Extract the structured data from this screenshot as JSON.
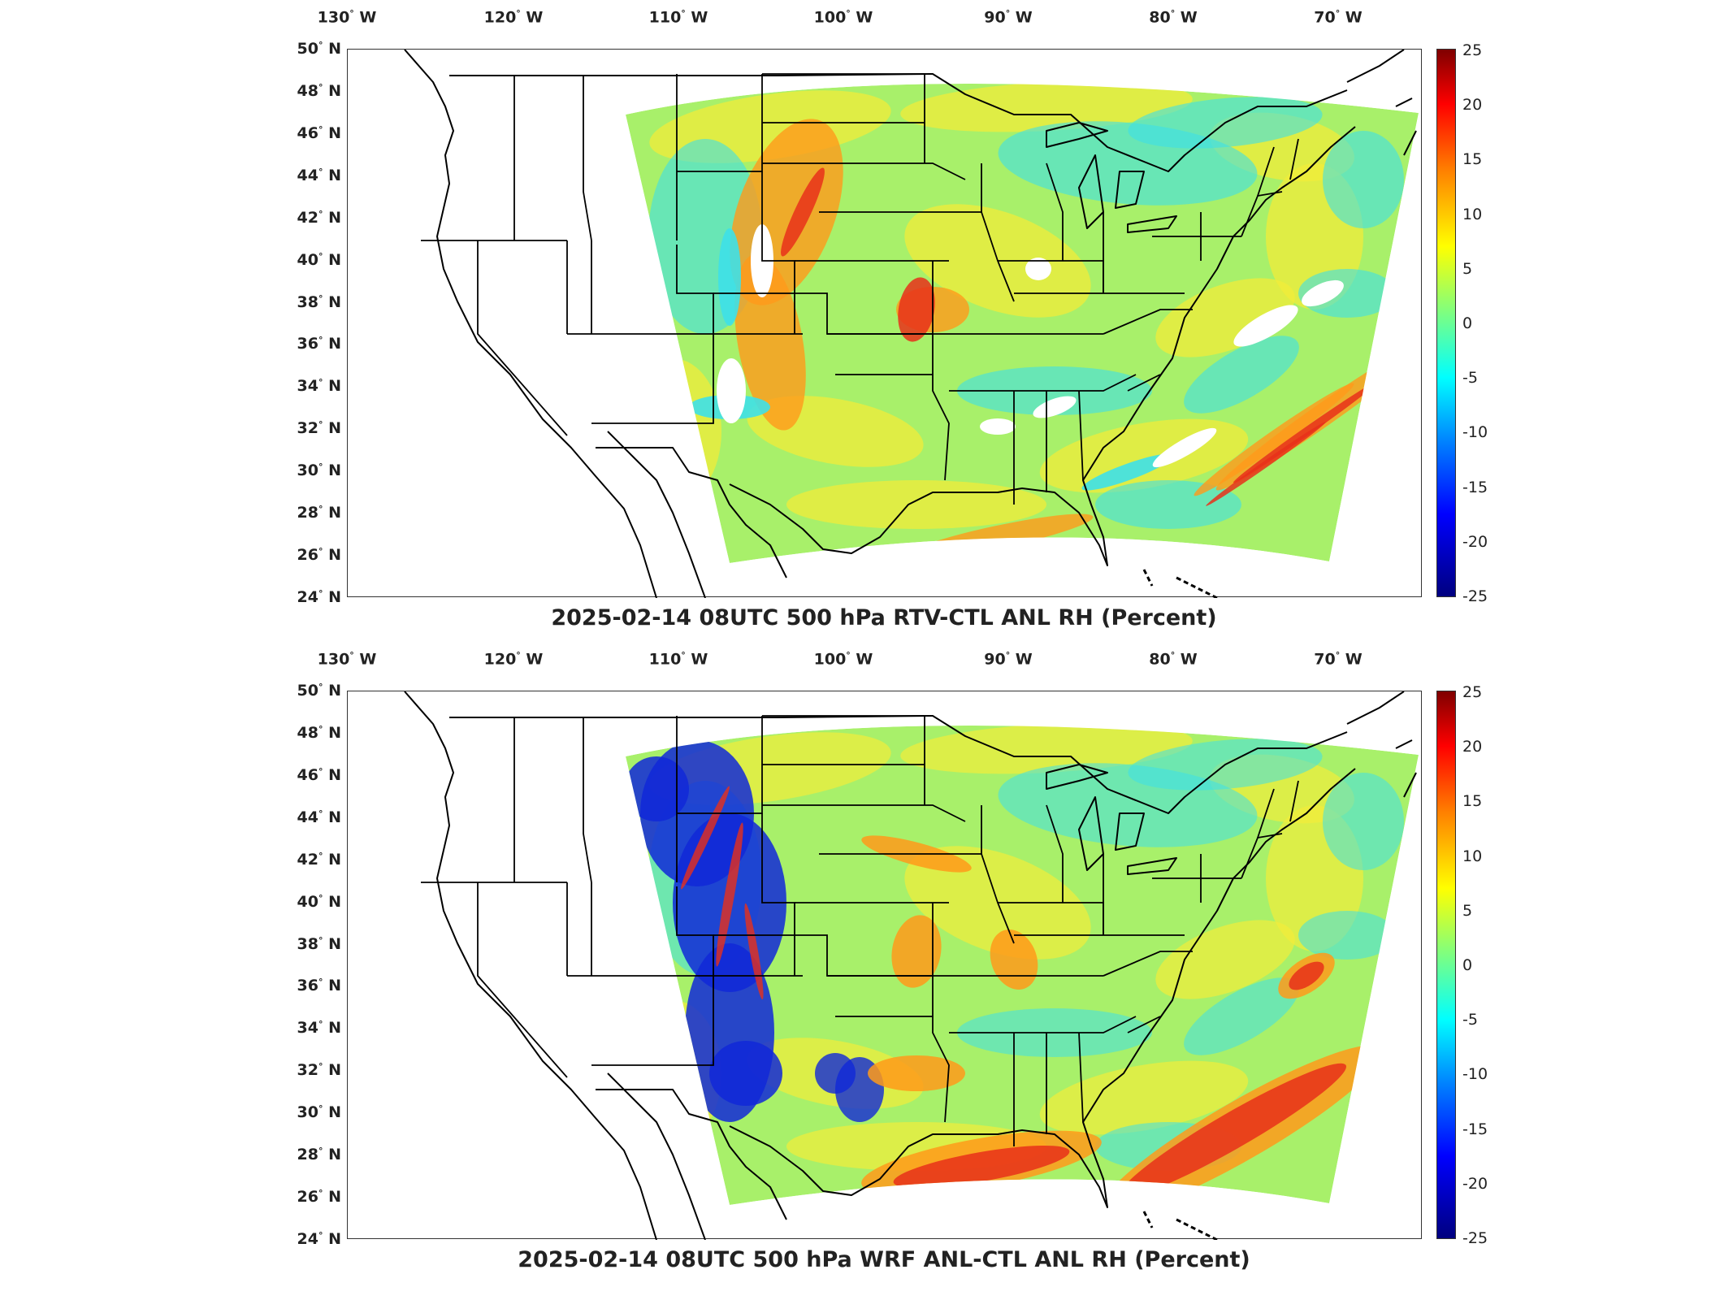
{
  "panels": [
    {
      "title": "2025-02-14 08UTC 500 hPa RTV-CTL ANL RH (Percent)",
      "variant": "rtv"
    },
    {
      "title": "2025-02-14 08UTC 500 hPa WRF ANL-CTL ANL RH (Percent)",
      "variant": "wrf"
    }
  ],
  "lon_labels": [
    "130",
    "120",
    "110",
    "100",
    "90",
    "80",
    "70"
  ],
  "lon_suffix": "W",
  "lat_labels": [
    "50",
    "48",
    "46",
    "44",
    "42",
    "40",
    "38",
    "36",
    "34",
    "32",
    "30",
    "28",
    "26",
    "24"
  ],
  "lat_suffix": "N",
  "degree_symbol": "°",
  "colorbar": {
    "ticks": [
      "25",
      "20",
      "15",
      "10",
      "5",
      "0",
      "-5",
      "-10",
      "-15",
      "-20",
      "-25"
    ],
    "min": -25,
    "max": 25,
    "colormap": "jet"
  },
  "colors": {
    "field_green": "#a8f06a",
    "field_yellow": "#f2ec3a",
    "field_cyan": "#3ee0e8",
    "field_orange": "#ff9a1a",
    "field_red": "#e8301a",
    "field_blue": "#1028d8",
    "coast": "#000000"
  }
}
